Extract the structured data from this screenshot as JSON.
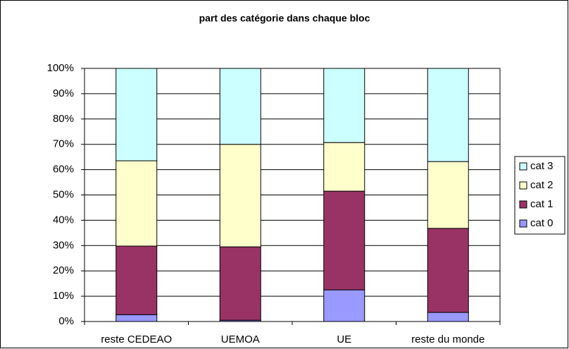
{
  "chart_data": {
    "type": "stacked_bar",
    "title": "part des catégorie dans chaque bloc",
    "categories": [
      "reste CEDEAO",
      "UEMOA",
      "UE",
      "reste du monde"
    ],
    "series": [
      {
        "name": "cat 0",
        "color": "#9999ff",
        "values": [
          2.7,
          0.5,
          12.5,
          3.6
        ]
      },
      {
        "name": "cat 1",
        "color": "#993366",
        "values": [
          27.1,
          29.0,
          39.0,
          33.2
        ]
      },
      {
        "name": "cat 2",
        "color": "#ffffcc",
        "values": [
          33.7,
          40.5,
          19.2,
          26.4
        ]
      },
      {
        "name": "cat 3",
        "color": "#ccffff",
        "values": [
          36.5,
          30.0,
          29.3,
          36.8
        ]
      }
    ],
    "ylim": [
      0,
      100
    ],
    "yticks": [
      {
        "value": 0,
        "label": "0%"
      },
      {
        "value": 10,
        "label": "10%"
      },
      {
        "value": 20,
        "label": "20%"
      },
      {
        "value": 30,
        "label": "30%"
      },
      {
        "value": 40,
        "label": "40%"
      },
      {
        "value": 50,
        "label": "50%"
      },
      {
        "value": 60,
        "label": "60%"
      },
      {
        "value": 70,
        "label": "70%"
      },
      {
        "value": 80,
        "label": "80%"
      },
      {
        "value": 90,
        "label": "90%"
      },
      {
        "value": 100,
        "label": "100%"
      }
    ],
    "grid": true,
    "legend": "right"
  }
}
